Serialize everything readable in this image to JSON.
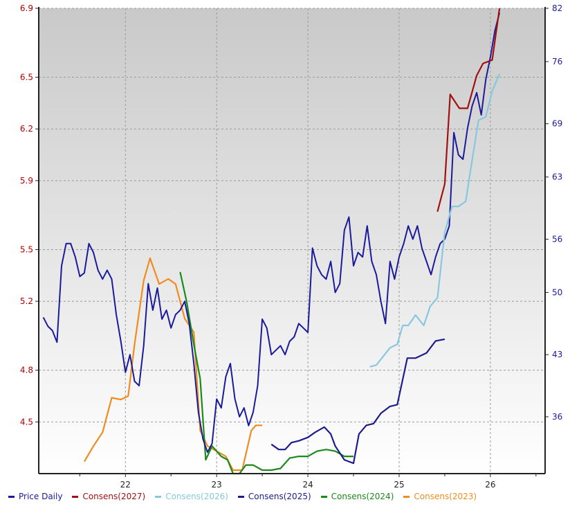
{
  "chart_data": {
    "type": "line",
    "left_axis": {
      "color": "#b00000",
      "ticks": [
        "6.9",
        "6.5",
        "6.2",
        "5.9",
        "5.5",
        "5.2",
        "4.8",
        "4.5"
      ],
      "tick_values": [
        6.9,
        6.5,
        6.2,
        5.9,
        5.5,
        5.2,
        4.8,
        4.5
      ],
      "range": [
        4.2,
        6.9
      ]
    },
    "right_axis": {
      "color": "#1a1a9a",
      "ticks": [
        "82",
        "76",
        "69",
        "63",
        "56",
        "50",
        "43",
        "36"
      ],
      "tick_values": [
        82,
        76,
        69,
        63,
        56,
        50,
        43,
        36
      ],
      "range": [
        29.6,
        82
      ]
    },
    "x_axis": {
      "ticks": [
        "22",
        "23",
        "24",
        "25",
        "26"
      ],
      "tick_values": [
        22,
        23,
        24,
        25,
        26
      ],
      "range": [
        21.05,
        26.6
      ]
    },
    "grid": true,
    "legend_position": "bottom",
    "series": [
      {
        "name": "Price Daily",
        "color": "#1a1a9a",
        "axis": "right",
        "points": [
          [
            21.1,
            47.2
          ],
          [
            21.15,
            46.2
          ],
          [
            21.2,
            45.7
          ],
          [
            21.25,
            44.4
          ],
          [
            21.3,
            53
          ],
          [
            21.35,
            55.5
          ],
          [
            21.4,
            55.5
          ],
          [
            21.45,
            54
          ],
          [
            21.5,
            51.8
          ],
          [
            21.55,
            52.2
          ],
          [
            21.6,
            55.5
          ],
          [
            21.65,
            54.5
          ],
          [
            21.7,
            52.5
          ],
          [
            21.75,
            51.5
          ],
          [
            21.8,
            52.5
          ],
          [
            21.85,
            51.5
          ],
          [
            21.9,
            47.5
          ],
          [
            21.95,
            44.5
          ],
          [
            22.0,
            41
          ],
          [
            22.05,
            43
          ],
          [
            22.1,
            40
          ],
          [
            22.15,
            39.5
          ],
          [
            22.2,
            44
          ],
          [
            22.25,
            51
          ],
          [
            22.3,
            48
          ],
          [
            22.35,
            50.5
          ],
          [
            22.4,
            47
          ],
          [
            22.45,
            48
          ],
          [
            22.5,
            46
          ],
          [
            22.55,
            47.5
          ],
          [
            22.6,
            48
          ],
          [
            22.65,
            49
          ],
          [
            22.7,
            46.5
          ],
          [
            22.75,
            42
          ],
          [
            22.8,
            36.5
          ],
          [
            22.85,
            33.5
          ],
          [
            22.9,
            32
          ],
          [
            22.95,
            33
          ],
          [
            23.0,
            38
          ],
          [
            23.05,
            37
          ],
          [
            23.1,
            40.5
          ],
          [
            23.15,
            42
          ],
          [
            23.2,
            38
          ],
          [
            23.25,
            36
          ],
          [
            23.3,
            37
          ],
          [
            23.35,
            35
          ],
          [
            23.4,
            36.5
          ],
          [
            23.45,
            39.5
          ],
          [
            23.5,
            47
          ],
          [
            23.55,
            46
          ],
          [
            23.6,
            43
          ],
          [
            23.65,
            43.5
          ],
          [
            23.7,
            44
          ],
          [
            23.75,
            43
          ],
          [
            23.8,
            44.5
          ],
          [
            23.85,
            45
          ],
          [
            23.9,
            46.5
          ],
          [
            23.95,
            46
          ],
          [
            24.0,
            45.5
          ],
          [
            24.05,
            55
          ],
          [
            24.1,
            53
          ],
          [
            24.15,
            52
          ],
          [
            24.2,
            51.5
          ],
          [
            24.25,
            53.5
          ],
          [
            24.3,
            50
          ],
          [
            24.35,
            51
          ],
          [
            24.4,
            57
          ],
          [
            24.45,
            58.5
          ],
          [
            24.5,
            53
          ],
          [
            24.55,
            54.5
          ],
          [
            24.6,
            54
          ],
          [
            24.65,
            57.5
          ],
          [
            24.7,
            53.5
          ],
          [
            24.75,
            52
          ],
          [
            24.8,
            49
          ],
          [
            24.85,
            46.5
          ],
          [
            24.9,
            53.5
          ],
          [
            24.95,
            51.5
          ],
          [
            25.0,
            54
          ],
          [
            25.05,
            55.5
          ],
          [
            25.1,
            57.5
          ],
          [
            25.15,
            56
          ],
          [
            25.2,
            57.5
          ],
          [
            25.25,
            55
          ],
          [
            25.3,
            53.5
          ],
          [
            25.35,
            52
          ],
          [
            25.4,
            54
          ],
          [
            25.45,
            55.5
          ],
          [
            25.5,
            56
          ],
          [
            25.55,
            57.5
          ],
          [
            25.6,
            68
          ],
          [
            25.65,
            65.5
          ],
          [
            25.7,
            65
          ],
          [
            25.75,
            68.5
          ],
          [
            25.8,
            71
          ],
          [
            25.85,
            72.5
          ],
          [
            25.9,
            70
          ],
          [
            25.95,
            74
          ],
          [
            26.0,
            76.5
          ],
          [
            26.05,
            79.5
          ],
          [
            26.1,
            81.5
          ]
        ]
      },
      {
        "name": "Consens(2027)",
        "color": "#a01010",
        "axis": "left",
        "points": [
          [
            25.42,
            5.72
          ],
          [
            25.5,
            5.88
          ],
          [
            25.56,
            6.4
          ],
          [
            25.66,
            6.32
          ],
          [
            25.75,
            6.32
          ],
          [
            25.85,
            6.51
          ],
          [
            25.92,
            6.58
          ],
          [
            26.02,
            6.6
          ],
          [
            26.1,
            6.9
          ]
        ]
      },
      {
        "name": "Consens(2026)",
        "color": "#86c8e0",
        "axis": "left",
        "points": [
          [
            24.68,
            4.82
          ],
          [
            24.75,
            4.83
          ],
          [
            24.9,
            4.93
          ],
          [
            24.98,
            4.95
          ],
          [
            25.04,
            5.06
          ],
          [
            25.1,
            5.06
          ],
          [
            25.18,
            5.12
          ],
          [
            25.27,
            5.06
          ],
          [
            25.34,
            5.17
          ],
          [
            25.42,
            5.22
          ],
          [
            25.5,
            5.6
          ],
          [
            25.58,
            5.75
          ],
          [
            25.65,
            5.75
          ],
          [
            25.73,
            5.78
          ],
          [
            25.78,
            5.95
          ],
          [
            25.87,
            6.25
          ],
          [
            25.95,
            6.27
          ],
          [
            26.02,
            6.42
          ],
          [
            26.1,
            6.52
          ]
        ]
      },
      {
        "name": "Consens(2025)",
        "color": "#1c1c8c",
        "axis": "left",
        "points": [
          [
            23.6,
            4.37
          ],
          [
            23.68,
            4.34
          ],
          [
            23.75,
            4.34
          ],
          [
            23.82,
            4.38
          ],
          [
            23.9,
            4.39
          ],
          [
            24.0,
            4.41
          ],
          [
            24.08,
            4.44
          ],
          [
            24.18,
            4.47
          ],
          [
            24.25,
            4.43
          ],
          [
            24.3,
            4.36
          ],
          [
            24.4,
            4.28
          ],
          [
            24.5,
            4.26
          ],
          [
            24.56,
            4.43
          ],
          [
            24.64,
            4.48
          ],
          [
            24.72,
            4.49
          ],
          [
            24.8,
            4.55
          ],
          [
            24.9,
            4.59
          ],
          [
            24.98,
            4.6
          ],
          [
            25.09,
            4.87
          ],
          [
            25.18,
            4.87
          ],
          [
            25.3,
            4.9
          ],
          [
            25.4,
            4.97
          ],
          [
            25.5,
            4.98
          ]
        ]
      },
      {
        "name": "Consens(2024)",
        "color": "#1a8a1a",
        "axis": "left",
        "points": [
          [
            22.6,
            5.37
          ],
          [
            22.67,
            5.2
          ],
          [
            22.75,
            4.95
          ],
          [
            22.82,
            4.75
          ],
          [
            22.88,
            4.28
          ],
          [
            22.95,
            4.36
          ],
          [
            23.05,
            4.3
          ],
          [
            23.12,
            4.28
          ],
          [
            23.18,
            4.2
          ],
          [
            23.25,
            4.2
          ],
          [
            23.32,
            4.25
          ],
          [
            23.4,
            4.25
          ],
          [
            23.5,
            4.22
          ],
          [
            23.6,
            4.22
          ],
          [
            23.7,
            4.23
          ],
          [
            23.8,
            4.29
          ],
          [
            23.9,
            4.3
          ],
          [
            24.0,
            4.3
          ],
          [
            24.1,
            4.33
          ],
          [
            24.2,
            4.34
          ],
          [
            24.3,
            4.33
          ],
          [
            24.4,
            4.3
          ],
          [
            24.5,
            4.3
          ]
        ]
      },
      {
        "name": "Consens(2023)",
        "color": "#f08c1e",
        "axis": "left",
        "points": [
          [
            21.55,
            4.27
          ],
          [
            21.65,
            4.36
          ],
          [
            21.75,
            4.44
          ],
          [
            21.85,
            4.64
          ],
          [
            21.95,
            4.63
          ],
          [
            22.03,
            4.65
          ],
          [
            22.1,
            4.95
          ],
          [
            22.2,
            5.32
          ],
          [
            22.27,
            5.45
          ],
          [
            22.37,
            5.3
          ],
          [
            22.47,
            5.33
          ],
          [
            22.55,
            5.3
          ],
          [
            22.65,
            5.1
          ],
          [
            22.75,
            5.02
          ],
          [
            22.82,
            4.45
          ],
          [
            22.9,
            4.36
          ],
          [
            23.0,
            4.33
          ],
          [
            23.1,
            4.3
          ],
          [
            23.18,
            4.22
          ],
          [
            23.28,
            4.22
          ],
          [
            23.38,
            4.45
          ],
          [
            23.43,
            4.48
          ],
          [
            23.5,
            4.48
          ]
        ]
      }
    ]
  }
}
